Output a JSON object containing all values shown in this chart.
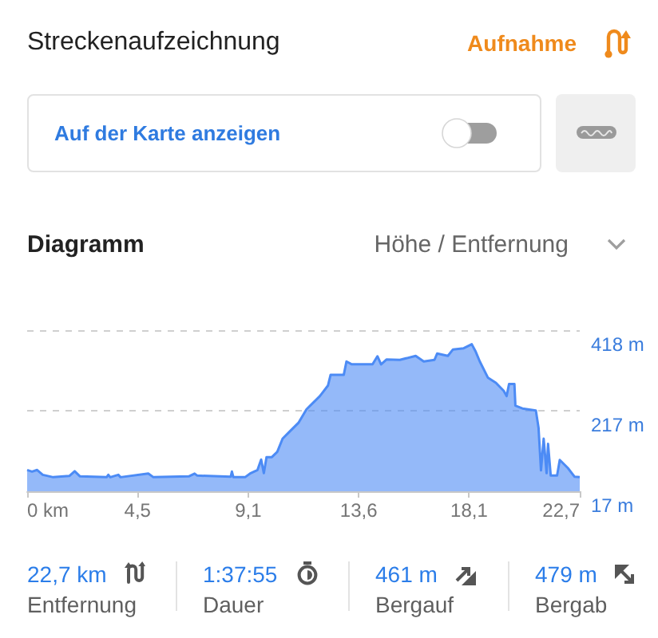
{
  "chart_data": {
    "type": "area",
    "title": "Diagramm",
    "subtitle": "Höhe / Entfernung",
    "annotations": [
      "Streckenaufzeichnung",
      "Aufnahme",
      "Auf der Karte anzeigen",
      "22,7 km",
      "Entfernung",
      "1:37:55",
      "Dauer",
      "461 m",
      "Bergauf",
      "479 m",
      "Bergab"
    ],
    "x": [
      0,
      0.2,
      0.41,
      0.64,
      1.07,
      1.73,
      1.95,
      2.17,
      3.26,
      3.33,
      3.41,
      3.74,
      3.83,
      4.97,
      5.18,
      6.63,
      6.87,
      6.98,
      8.35,
      8.4,
      8.46,
      8.94,
      9.17,
      9.45,
      9.6,
      9.71,
      9.82,
      10.04,
      10.26,
      10.48,
      10.81,
      11.14,
      11.46,
      12.01,
      12.34,
      12.45,
      12.99,
      13.1,
      13.32,
      14.17,
      14.37,
      14.52,
      14.74,
      15.29,
      15.94,
      16.27,
      16.71,
      16.82,
      17.26,
      17.47,
      17.91,
      18.24,
      18.39,
      18.57,
      18.9,
      19.23,
      19.55,
      19.67,
      19.77,
      19.99,
      20.03,
      20.32,
      20.87,
      20.98,
      21.08,
      21.19,
      21.31,
      21.37,
      21.48,
      21.74,
      21.85,
      22.18,
      22.46,
      22.67
    ],
    "values": [
      70,
      66,
      70,
      58,
      52,
      55,
      67,
      54,
      52,
      58,
      52,
      58,
      52,
      61,
      52,
      54,
      61,
      56,
      53,
      66,
      52,
      52,
      62,
      70,
      96,
      62,
      102,
      102,
      115,
      148,
      168,
      188,
      221,
      254,
      280,
      307,
      307,
      340,
      333,
      333,
      353,
      333,
      345,
      344,
      354,
      340,
      344,
      360,
      354,
      370,
      373,
      383,
      366,
      340,
      300,
      287,
      267,
      254,
      284,
      284,
      230,
      223,
      218,
      175,
      69,
      148,
      62,
      135,
      56,
      56,
      95,
      75,
      53,
      52
    ],
    "color": "#4c8bf5",
    "xlim": [
      0,
      22.67
    ],
    "xticks": [
      {
        "value": 0,
        "label": "0 km"
      },
      {
        "value": 4.53,
        "label": "4,5"
      },
      {
        "value": 9.07,
        "label": "9,1"
      },
      {
        "value": 13.6,
        "label": "13,6"
      },
      {
        "value": 18.13,
        "label": "18,1"
      },
      {
        "value": 22.67,
        "label": "22,7"
      }
    ],
    "ylim": [
      17,
      418
    ],
    "yticks": [
      {
        "value": 17,
        "label": "17 m"
      },
      {
        "value": 217,
        "label": "217 m"
      },
      {
        "value": 418,
        "label": "418 m"
      }
    ],
    "grid": "y",
    "marker": "none"
  }
}
